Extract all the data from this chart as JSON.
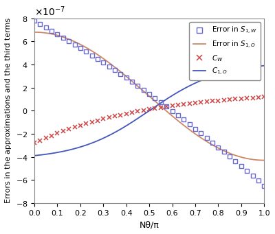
{
  "xlabel": "Nθ/π",
  "ylabel": "Errors in the approximations and the third terms",
  "xlim": [
    0,
    1
  ],
  "ylim": [
    -8e-07,
    8e-07
  ],
  "yticks": [
    -8e-07,
    -6e-07,
    -4e-07,
    -2e-07,
    0,
    2e-07,
    4e-07,
    6e-07,
    8e-07
  ],
  "xticks": [
    0,
    0.1,
    0.2,
    0.3,
    0.4,
    0.5,
    0.6,
    0.7,
    0.8,
    0.9,
    1.0
  ],
  "color_squares": "#6666cc",
  "color_S1O": "#cc8866",
  "color_CW": "#cc4444",
  "color_C1O": "#4455bb",
  "n_discrete": 41,
  "background": "#ffffff"
}
